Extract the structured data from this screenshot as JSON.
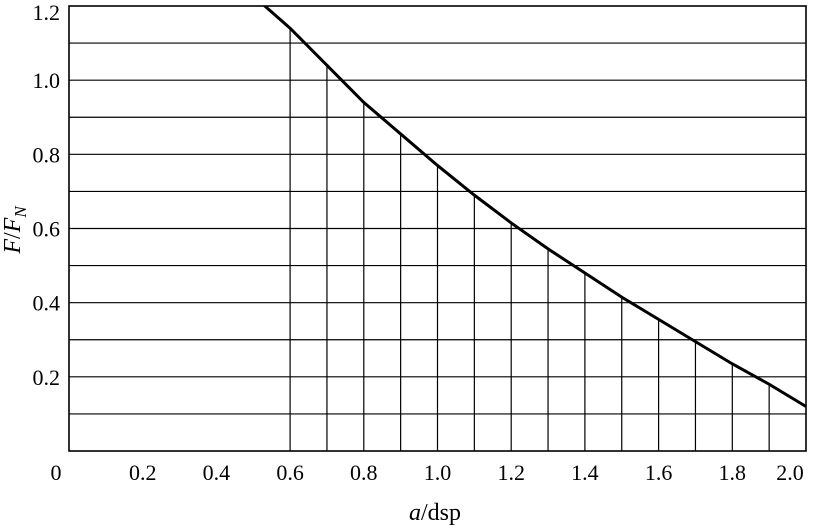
{
  "chart_data": {
    "type": "line",
    "xlabel": "a/dsp",
    "ylabel": "F/F_N",
    "xlim": [
      0,
      2.0
    ],
    "ylim": [
      0,
      1.2
    ],
    "grid": true,
    "x_ticks": [
      "0",
      "0.2",
      "0.4",
      "0.6",
      "0.8",
      "1.0",
      "1.2",
      "1.4",
      "1.6",
      "1.8",
      "2.0"
    ],
    "y_ticks": [
      "0.2",
      "0.4",
      "0.6",
      "0.8",
      "1.0",
      "1.2"
    ],
    "horizontal_grid_values": [
      0.1,
      0.2,
      0.3,
      0.4,
      0.5,
      0.6,
      0.7,
      0.8,
      0.9,
      1.0,
      1.1
    ],
    "vertical_grid_values": [
      0.6,
      0.7,
      0.8,
      0.9,
      1.0,
      1.1,
      1.2,
      1.3,
      1.4,
      1.5,
      1.6,
      1.7,
      1.8,
      1.9
    ],
    "series": [
      {
        "x": [
          0.52,
          0.6,
          0.7,
          0.8,
          0.9,
          1.0,
          1.1,
          1.2,
          1.3,
          1.4,
          1.5,
          1.6,
          1.7,
          1.8,
          1.9,
          2.0
        ],
        "y": [
          1.21,
          1.14,
          1.04,
          0.94,
          0.855,
          0.77,
          0.69,
          0.615,
          0.545,
          0.48,
          0.415,
          0.355,
          0.295,
          0.235,
          0.18,
          0.12
        ]
      }
    ]
  }
}
